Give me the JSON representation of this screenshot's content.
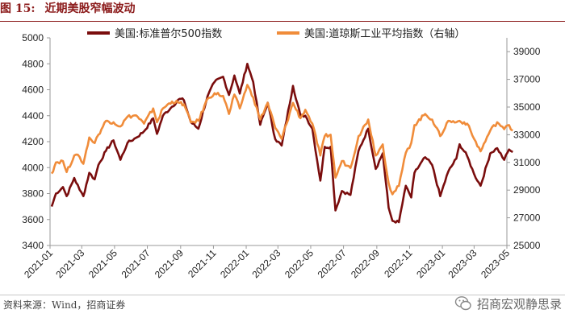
{
  "header": {
    "figure_label": "图 15:",
    "title": "近期美股窄幅波动"
  },
  "footer": {
    "source": "资料来源：Wind，招商证券",
    "brand": "招商宏观静思录"
  },
  "chart_data": {
    "type": "line",
    "x": [
      "2021-01",
      "2021-03",
      "2021-05",
      "2021-07",
      "2021-09",
      "2021-11",
      "2022-01",
      "2022-03",
      "2022-05",
      "2022-07",
      "2022-09",
      "2022-11",
      "2023-01",
      "2023-03",
      "2023-05"
    ],
    "x_range": [
      "2021-01",
      "2023-05"
    ],
    "left_axis": {
      "ylim": [
        3400,
        5000
      ],
      "ticks": [
        3400,
        3600,
        3800,
        4000,
        4200,
        4400,
        4600,
        4800,
        5000
      ]
    },
    "right_axis": {
      "ylim": [
        25000,
        40000
      ],
      "ticks": [
        25000,
        27000,
        29000,
        31000,
        33000,
        35000,
        37000,
        39000
      ]
    },
    "series": [
      {
        "name": "美国:标准普尔500指数",
        "axis": "left",
        "color": "#7a0d0d",
        "points": [
          [
            "2021-01-04",
            3700
          ],
          [
            "2021-01-12",
            3800
          ],
          [
            "2021-01-25",
            3850
          ],
          [
            "2021-02-01",
            3780
          ],
          [
            "2021-02-15",
            3920
          ],
          [
            "2021-02-25",
            3830
          ],
          [
            "2021-03-04",
            3780
          ],
          [
            "2021-03-15",
            3960
          ],
          [
            "2021-03-25",
            3910
          ],
          [
            "2021-04-01",
            4020
          ],
          [
            "2021-04-15",
            4130
          ],
          [
            "2021-04-29",
            4210
          ],
          [
            "2021-05-12",
            4060
          ],
          [
            "2021-05-25",
            4190
          ],
          [
            "2021-06-10",
            4230
          ],
          [
            "2021-06-25",
            4280
          ],
          [
            "2021-07-12",
            4380
          ],
          [
            "2021-07-19",
            4260
          ],
          [
            "2021-07-30",
            4400
          ],
          [
            "2021-08-16",
            4470
          ],
          [
            "2021-08-30",
            4530
          ],
          [
            "2021-09-07",
            4520
          ],
          [
            "2021-09-20",
            4350
          ],
          [
            "2021-10-04",
            4300
          ],
          [
            "2021-10-21",
            4550
          ],
          [
            "2021-11-03",
            4660
          ],
          [
            "2021-11-19",
            4700
          ],
          [
            "2021-11-30",
            4560
          ],
          [
            "2021-12-10",
            4710
          ],
          [
            "2021-12-20",
            4570
          ],
          [
            "2022-01-03",
            4800
          ],
          [
            "2022-01-14",
            4660
          ],
          [
            "2022-01-27",
            4330
          ],
          [
            "2022-02-10",
            4500
          ],
          [
            "2022-02-24",
            4220
          ],
          [
            "2022-03-08",
            4170
          ],
          [
            "2022-03-29",
            4630
          ],
          [
            "2022-04-12",
            4400
          ],
          [
            "2022-04-21",
            4400
          ],
          [
            "2022-05-04",
            4300
          ],
          [
            "2022-05-19",
            3900
          ],
          [
            "2022-05-27",
            4160
          ],
          [
            "2022-06-07",
            4160
          ],
          [
            "2022-06-16",
            3670
          ],
          [
            "2022-06-28",
            3820
          ],
          [
            "2022-07-14",
            3790
          ],
          [
            "2022-07-29",
            4130
          ],
          [
            "2022-08-16",
            4300
          ],
          [
            "2022-08-30",
            3990
          ],
          [
            "2022-09-12",
            4110
          ],
          [
            "2022-09-23",
            3690
          ],
          [
            "2022-09-30",
            3590
          ],
          [
            "2022-10-12",
            3580
          ],
          [
            "2022-10-25",
            3860
          ],
          [
            "2022-11-04",
            3770
          ],
          [
            "2022-11-10",
            3960
          ],
          [
            "2022-11-30",
            4080
          ],
          [
            "2022-12-13",
            4020
          ],
          [
            "2022-12-28",
            3780
          ],
          [
            "2023-01-12",
            3970
          ],
          [
            "2023-01-27",
            4070
          ],
          [
            "2023-02-02",
            4180
          ],
          [
            "2023-02-16",
            4090
          ],
          [
            "2023-03-01",
            3950
          ],
          [
            "2023-03-13",
            3860
          ],
          [
            "2023-03-31",
            4110
          ],
          [
            "2023-04-13",
            4150
          ],
          [
            "2023-04-26",
            4060
          ],
          [
            "2023-05-05",
            4140
          ],
          [
            "2023-05-12",
            4120
          ]
        ]
      },
      {
        "name": "美国:道琼斯工业平均指数（右轴）",
        "axis": "right",
        "color": "#f08c3a",
        "points": [
          [
            "2021-01-04",
            30200
          ],
          [
            "2021-01-12",
            31000
          ],
          [
            "2021-01-25",
            31100
          ],
          [
            "2021-02-01",
            30300
          ],
          [
            "2021-02-15",
            31500
          ],
          [
            "2021-02-25",
            31400
          ],
          [
            "2021-03-04",
            30900
          ],
          [
            "2021-03-15",
            32800
          ],
          [
            "2021-03-25",
            32400
          ],
          [
            "2021-04-01",
            33000
          ],
          [
            "2021-04-15",
            34000
          ],
          [
            "2021-04-29",
            33900
          ],
          [
            "2021-05-12",
            33600
          ],
          [
            "2021-05-25",
            34300
          ],
          [
            "2021-06-10",
            34400
          ],
          [
            "2021-06-25",
            33800
          ],
          [
            "2021-07-12",
            34900
          ],
          [
            "2021-07-19",
            33900
          ],
          [
            "2021-07-30",
            34900
          ],
          [
            "2021-08-16",
            35400
          ],
          [
            "2021-08-30",
            35300
          ],
          [
            "2021-09-07",
            35200
          ],
          [
            "2021-09-20",
            33900
          ],
          [
            "2021-10-04",
            34000
          ],
          [
            "2021-10-21",
            35600
          ],
          [
            "2021-11-03",
            36000
          ],
          [
            "2021-11-19",
            35800
          ],
          [
            "2021-11-30",
            34500
          ],
          [
            "2021-12-10",
            35900
          ],
          [
            "2021-12-20",
            34900
          ],
          [
            "2022-01-03",
            36600
          ],
          [
            "2022-01-14",
            35700
          ],
          [
            "2022-01-27",
            34100
          ],
          [
            "2022-02-10",
            35300
          ],
          [
            "2022-02-24",
            33500
          ],
          [
            "2022-03-08",
            32700
          ],
          [
            "2022-03-29",
            35300
          ],
          [
            "2022-04-12",
            34200
          ],
          [
            "2022-04-21",
            34800
          ],
          [
            "2022-05-04",
            33800
          ],
          [
            "2022-05-19",
            31500
          ],
          [
            "2022-05-27",
            32900
          ],
          [
            "2022-06-07",
            33000
          ],
          [
            "2022-06-16",
            29900
          ],
          [
            "2022-06-28",
            31100
          ],
          [
            "2022-07-14",
            30600
          ],
          [
            "2022-07-29",
            32900
          ],
          [
            "2022-08-16",
            34100
          ],
          [
            "2022-08-30",
            31500
          ],
          [
            "2022-09-12",
            32300
          ],
          [
            "2022-09-23",
            29500
          ],
          [
            "2022-09-30",
            28700
          ],
          [
            "2022-10-12",
            29300
          ],
          [
            "2022-10-25",
            31700
          ],
          [
            "2022-11-04",
            32400
          ],
          [
            "2022-11-10",
            33700
          ],
          [
            "2022-11-30",
            34500
          ],
          [
            "2022-12-13",
            34100
          ],
          [
            "2022-12-28",
            32900
          ],
          [
            "2023-01-12",
            34000
          ],
          [
            "2023-01-27",
            33900
          ],
          [
            "2023-02-02",
            34000
          ],
          [
            "2023-02-16",
            33800
          ],
          [
            "2023-03-01",
            32700
          ],
          [
            "2023-03-13",
            31800
          ],
          [
            "2023-03-31",
            33300
          ],
          [
            "2023-04-13",
            33900
          ],
          [
            "2023-04-26",
            33400
          ],
          [
            "2023-05-05",
            33700
          ],
          [
            "2023-05-12",
            33300
          ]
        ]
      }
    ]
  }
}
